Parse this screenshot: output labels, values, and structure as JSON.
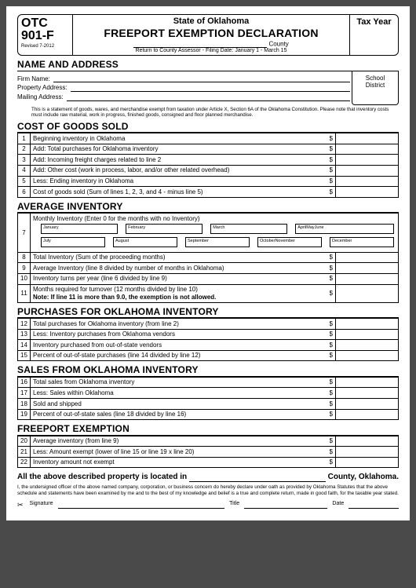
{
  "header": {
    "code1": "OTC",
    "code2": "901-F",
    "revised": "Revised 7-2012",
    "state": "State of Oklahoma",
    "title": "FREEPORT EXEMPTION DECLARATION",
    "county_suffix": "County",
    "return_line": "Return to County Assessor - Filing Date: January 1 - March 15",
    "tax_year": "Tax Year"
  },
  "name_address": {
    "heading": "NAME AND ADDRESS",
    "school": "School",
    "district": "District",
    "firm": "Firm Name:",
    "prop": "Property Address:",
    "mail": "Mailing Address:",
    "note": "This is a statement of goods, wares, and merchandise exempt from taxation under Article X, Section 6A of the Oklahoma Constitution. Please note that inventory costs must include raw material, work in progress, finished goods, consigned and floor planned merchandise."
  },
  "cogs": {
    "heading": "COST OF GOODS SOLD",
    "rows": [
      {
        "n": "1",
        "d": "Beginning inventory in Oklahoma"
      },
      {
        "n": "2",
        "d": "Add:  Total purchases for Oklahoma inventory"
      },
      {
        "n": "3",
        "d": "Add:  Incoming freight charges related to line 2"
      },
      {
        "n": "4",
        "d": "Add:  Other cost (work in process, labor, and/or other related overhead)"
      },
      {
        "n": "5",
        "d": "Less:  Ending inventory in Oklahoma"
      },
      {
        "n": "6",
        "d": "Cost of goods sold (Sum of lines 1, 2, 3, and 4 - minus line 5)"
      }
    ]
  },
  "avg": {
    "heading": "AVERAGE INVENTORY",
    "row7": "Monthly Inventory (Enter 0 for the months with no Inventory)",
    "months_a": [
      "January",
      "February",
      "March",
      "AprilMayJune"
    ],
    "months_b": [
      "July",
      "August",
      "September",
      "OctoberNovember",
      "December"
    ],
    "rows": [
      {
        "n": "8",
        "d": "Total Inventory (Sum of the proceeding months)"
      },
      {
        "n": "9",
        "d": "Average Inventory (line 8 divided by number of months in Oklahoma)"
      },
      {
        "n": "10",
        "d": "Inventory turns per year (line 6 divided by line 9)"
      },
      {
        "n": "11",
        "d": "Months required for turnover (12 months divided by line 10)"
      }
    ],
    "note11": "Note: If line 11 is more than 9.0, the exemption is not allowed."
  },
  "purch": {
    "heading": "PURCHASES FOR OKLAHOMA INVENTORY",
    "rows": [
      {
        "n": "12",
        "d": "Total purchases for Oklahoma inventory (from line 2)"
      },
      {
        "n": "13",
        "d": "Less:  Inventory purchases from Oklahoma vendors"
      },
      {
        "n": "14",
        "d": "Inventory purchased from out-of-state vendors"
      },
      {
        "n": "15",
        "d": "Percent of out-of-state purchases (line 14 divided by line 12)"
      }
    ]
  },
  "sales": {
    "heading": "SALES FROM OKLAHOMA INVENTORY",
    "rows": [
      {
        "n": "16",
        "d": "Total sales from Oklahoma inventory"
      },
      {
        "n": "17",
        "d": "Less:  Sales within Oklahoma"
      },
      {
        "n": "18",
        "d": "Sold and shipped"
      },
      {
        "n": "19",
        "d": "Percent of out-of-state sales (line 18 divided by line 16)"
      }
    ]
  },
  "free": {
    "heading": "FREEPORT EXEMPTION",
    "rows": [
      {
        "n": "20",
        "d": "Average inventory (from line 9)"
      },
      {
        "n": "21",
        "d": "Less:  Amount exempt (lower of line 15 or line 19 x line 20)"
      },
      {
        "n": "22",
        "d": "Inventory amount not exempt"
      }
    ]
  },
  "footer": {
    "loc_pre": "All the above described property is located in",
    "loc_suf": "County, Oklahoma.",
    "decl": "I, the undersigned officer of the above named company, corporation, or business concern do hereby declare under oath as provided by Oklahoma Statutes that the above schedule and statements have been examined by me and to the best of my knowledge and belief is a true and complete return, made in good faith, for the taxable year stated.",
    "sig": "Signature",
    "title_l": "Title",
    "date_l": "Date"
  },
  "style": {
    "page_bg": "#ffffff",
    "outer_bg": "#4a4a4a",
    "border": "#000000",
    "font": "Arial"
  }
}
